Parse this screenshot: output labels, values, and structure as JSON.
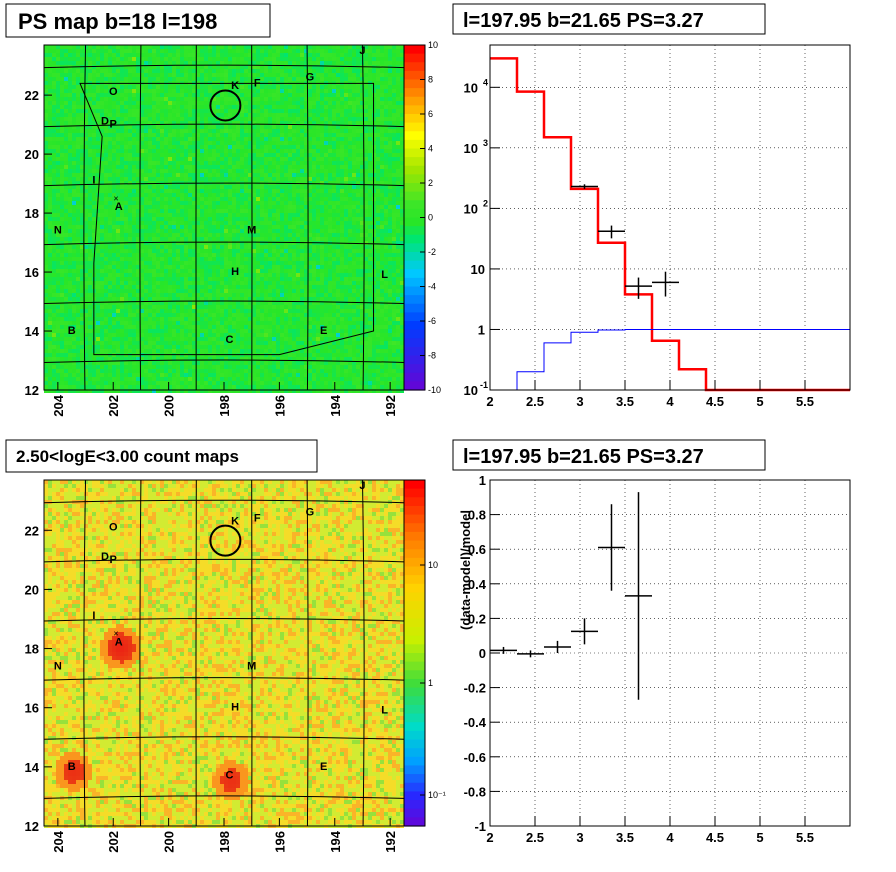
{
  "panels": {
    "top_left_title": "PS map b=18 l=198",
    "top_right_title": "l=197.95 b=21.65 PS=3.27",
    "bottom_left_title": "2.50<logE<3.00 count maps",
    "bottom_right_title": "l=197.95 b=21.65 PS=3.27"
  },
  "maps": {
    "lon_ticks": [
      "204",
      "202",
      "200",
      "198",
      "196",
      "194",
      "192"
    ],
    "lat_ticks": [
      "12",
      "14",
      "16",
      "18",
      "20",
      "22"
    ],
    "sources": [
      "A",
      "B",
      "C",
      "D",
      "E",
      "F",
      "G",
      "H",
      "I",
      "J",
      "K",
      "L",
      "M",
      "N",
      "O",
      "P"
    ],
    "ps_colorbar_ticks": [
      "10",
      "8",
      "6",
      "4",
      "2",
      "0",
      "-2",
      "-4",
      "-6",
      "-8",
      "-10"
    ],
    "count_colorbar_ticks": [
      "10",
      "1",
      "10",
      "-1"
    ],
    "count_colorbar_labels": [
      "10",
      "1",
      "10⁻¹"
    ]
  },
  "chart_data": [
    {
      "type": "heatmap",
      "title": "PS map b=18 l=198",
      "xlim": [
        204.5,
        191.5
      ],
      "ylim": [
        12,
        23.7
      ],
      "zlim": [
        -10,
        10
      ],
      "marker_circle": {
        "l": 197.95,
        "b": 21.65
      }
    },
    {
      "type": "line",
      "title": "l=197.95 b=21.65 PS=3.27",
      "xlim": [
        2,
        6
      ],
      "ylim": [
        0.1,
        50000
      ],
      "yscale": "log",
      "x_ticks": [
        "2",
        "2.5",
        "3",
        "3.5",
        "4",
        "4.5",
        "5",
        "5.5"
      ],
      "y_ticks": [
        "10^-1",
        "1",
        "10",
        "10^2",
        "10^3",
        "10^4"
      ],
      "grid": true,
      "series": [
        {
          "color": "#ff0000",
          "bins": [
            2.0,
            2.3,
            2.6,
            2.9,
            3.2,
            3.5,
            3.8,
            4.1,
            4.4,
            6.0
          ],
          "values": [
            30000,
            8500,
            1500,
            210,
            27,
            3.8,
            0.65,
            0.22,
            0.1
          ]
        },
        {
          "color": "#0000ff",
          "bins": [
            2.0,
            2.3,
            2.6,
            2.9,
            3.2,
            3.5,
            3.8,
            4.1,
            4.4,
            6.0
          ],
          "values": [
            0.02,
            0.2,
            0.6,
            0.9,
            0.98,
            1.0,
            1.0,
            1.0,
            1.0
          ]
        },
        {
          "color": "#000000",
          "x": [
            3.05,
            3.35,
            3.65,
            3.95
          ],
          "xerr": [
            0.15,
            0.15,
            0.15,
            0.15
          ],
          "y": [
            230,
            42,
            5.2,
            6
          ],
          "yerr_lo": [
            20,
            10,
            2,
            2.5
          ],
          "yerr_hi": [
            20,
            10,
            2,
            3
          ]
        }
      ]
    },
    {
      "type": "heatmap",
      "title": "2.50<logE<3.00 count maps",
      "xlim": [
        204.5,
        191.5
      ],
      "ylim": [
        12,
        23.7
      ],
      "zscale": "log",
      "hotspots": [
        {
          "label": "A",
          "l": 201.8,
          "b": 18.1
        },
        {
          "label": "B",
          "l": 203.5,
          "b": 13.9
        },
        {
          "label": "C",
          "l": 197.8,
          "b": 13.6
        }
      ]
    },
    {
      "type": "scatter",
      "title": "l=197.95 b=21.65 PS=3.27",
      "ylabel": "(data-model)/model",
      "xlim": [
        2,
        6
      ],
      "ylim": [
        -1,
        1
      ],
      "x_ticks": [
        "2",
        "2.5",
        "3",
        "3.5",
        "4",
        "4.5",
        "5",
        "5.5"
      ],
      "y_ticks": [
        "1",
        "0.8",
        "0.6",
        "0.4",
        "0.2",
        "0",
        "-0.2",
        "-0.4",
        "-0.6",
        "-0.8",
        "-1"
      ],
      "grid": true,
      "x": [
        2.15,
        2.45,
        2.75,
        3.05,
        3.35,
        3.65
      ],
      "xerr": [
        0.15,
        0.15,
        0.15,
        0.15,
        0.15,
        0.15
      ],
      "y": [
        0.015,
        -0.005,
        0.035,
        0.125,
        0.61,
        0.33
      ],
      "yerr": [
        0.02,
        0.02,
        0.035,
        0.075,
        0.25,
        0.6
      ]
    }
  ]
}
